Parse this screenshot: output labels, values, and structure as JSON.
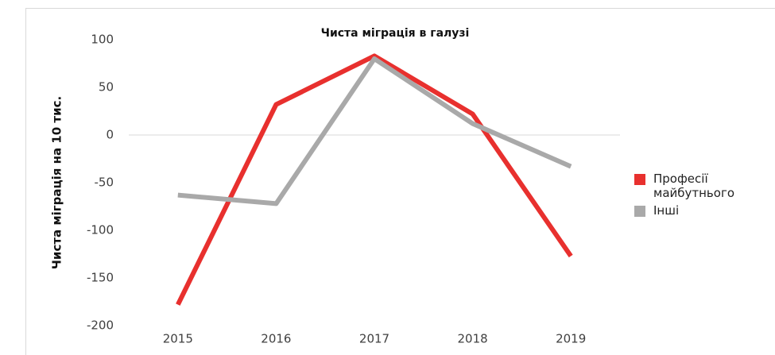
{
  "chart_data": {
    "type": "line",
    "title": "Чиста міграція в галузі",
    "ylabel": "Чиста міграція на 10 тис.",
    "categories": [
      "2015",
      "2016",
      "2017",
      "2018",
      "2019"
    ],
    "series": [
      {
        "name": "Професії майбутнього",
        "color": "#e8302e",
        "values": [
          -178,
          32,
          83,
          22,
          -127
        ]
      },
      {
        "name": "Інші",
        "color": "#a9a9a9",
        "values": [
          -63,
          -72,
          80,
          12,
          -33
        ]
      }
    ],
    "ylim": [
      -200,
      100
    ],
    "yticks": [
      -200,
      -150,
      -100,
      -50,
      0,
      50,
      100
    ],
    "grid": false,
    "legend": "right"
  }
}
